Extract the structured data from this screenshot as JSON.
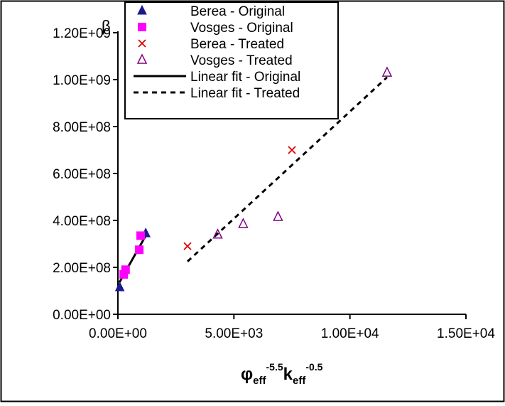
{
  "chart_data": {
    "type": "scatter",
    "title": "",
    "xlabel": {
      "symbol": "φ",
      "sub1": "eff",
      "sup1": "-5.5",
      "letter": "k",
      "sub2": "eff",
      "sup2": "-0.5"
    },
    "ylabel": "β",
    "xlim": [
      0,
      15000
    ],
    "ylim": [
      0,
      1200000000
    ],
    "x_ticks": [
      {
        "value": 0,
        "label": "0.00E+00"
      },
      {
        "value": 5000,
        "label": "5.00E+03"
      },
      {
        "value": 10000,
        "label": "1.00E+04"
      },
      {
        "value": 15000,
        "label": "1.50E+04"
      }
    ],
    "y_ticks": [
      {
        "value": 0,
        "label": "0.00E+00"
      },
      {
        "value": 200000000,
        "label": "2.00E+08"
      },
      {
        "value": 400000000,
        "label": "4.00E+08"
      },
      {
        "value": 600000000,
        "label": "6.00E+08"
      },
      {
        "value": 800000000,
        "label": "8.00E+08"
      },
      {
        "value": 1000000000,
        "label": "1.00E+09"
      },
      {
        "value": 1200000000,
        "label": "1.20E+09"
      }
    ],
    "grid": false,
    "legend_position": "top-center",
    "series": [
      {
        "name": "Berea - Original",
        "marker": "filled-triangle",
        "color": "#1a1a8c",
        "points": [
          [
            80,
            115000000
          ],
          [
            1200,
            345000000
          ]
        ]
      },
      {
        "name": "Vosges - Original",
        "marker": "filled-square",
        "color": "#ff00ff",
        "points": [
          [
            250,
            170000000
          ],
          [
            330,
            190000000
          ],
          [
            920,
            275000000
          ],
          [
            980,
            335000000
          ]
        ]
      },
      {
        "name": "Berea - Treated",
        "marker": "x",
        "color": "#e00000",
        "points": [
          [
            3000,
            290000000
          ],
          [
            7500,
            700000000
          ]
        ]
      },
      {
        "name": "Vosges - Treated",
        "marker": "open-triangle",
        "color": "#800080",
        "points": [
          [
            4300,
            340000000
          ],
          [
            5400,
            385000000
          ],
          [
            6900,
            415000000
          ],
          [
            11600,
            1030000000
          ]
        ]
      },
      {
        "name": "Linear fit - Original",
        "line_style": "solid",
        "color": "#000000",
        "line": [
          [
            60,
            135000000
          ],
          [
            1200,
            335000000
          ]
        ]
      },
      {
        "name": "Linear fit - Treated",
        "line_style": "dashed",
        "color": "#000000",
        "line": [
          [
            3000,
            225000000
          ],
          [
            11600,
            1010000000
          ]
        ]
      }
    ]
  }
}
